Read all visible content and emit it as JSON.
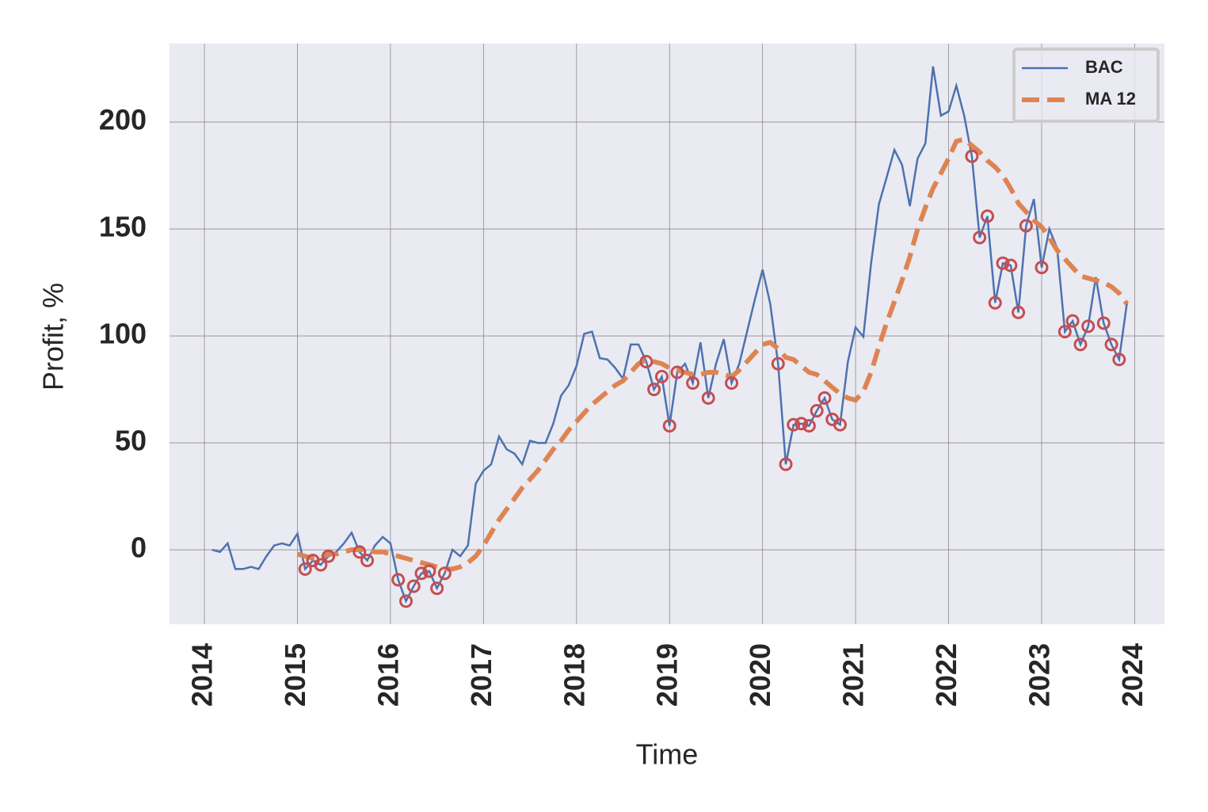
{
  "chart_data": {
    "type": "line",
    "xlabel": "Time",
    "ylabel": "Profit, %",
    "xlim": [
      2013.625,
      2024.32
    ],
    "xticks": [
      2014,
      2015,
      2016,
      2017,
      2018,
      2019,
      2020,
      2021,
      2022,
      2023,
      2024
    ],
    "ylim": [
      -34.8,
      236.7
    ],
    "yticks": [
      0,
      50,
      100,
      150,
      200
    ],
    "grid": true,
    "legend": "upper right",
    "marker_color": "#c44e52",
    "x": [
      2014.083,
      2014.167,
      2014.25,
      2014.333,
      2014.417,
      2014.5,
      2014.583,
      2014.667,
      2014.75,
      2014.833,
      2014.917,
      2015.0,
      2015.083,
      2015.167,
      2015.25,
      2015.333,
      2015.417,
      2015.5,
      2015.583,
      2015.667,
      2015.75,
      2015.833,
      2015.917,
      2016.0,
      2016.083,
      2016.167,
      2016.25,
      2016.333,
      2016.417,
      2016.5,
      2016.583,
      2016.667,
      2016.75,
      2016.833,
      2016.917,
      2017.0,
      2017.083,
      2017.167,
      2017.25,
      2017.333,
      2017.417,
      2017.5,
      2017.583,
      2017.667,
      2017.75,
      2017.833,
      2017.917,
      2018.0,
      2018.083,
      2018.167,
      2018.25,
      2018.333,
      2018.417,
      2018.5,
      2018.583,
      2018.667,
      2018.75,
      2018.833,
      2018.917,
      2019.0,
      2019.083,
      2019.167,
      2019.25,
      2019.333,
      2019.417,
      2019.5,
      2019.583,
      2019.667,
      2019.75,
      2019.833,
      2019.917,
      2020.0,
      2020.083,
      2020.167,
      2020.25,
      2020.333,
      2020.417,
      2020.5,
      2020.583,
      2020.667,
      2020.75,
      2020.833,
      2020.917,
      2021.0,
      2021.083,
      2021.167,
      2021.25,
      2021.333,
      2021.417,
      2021.5,
      2021.583,
      2021.667,
      2021.75,
      2021.833,
      2021.917,
      2022.0,
      2022.083,
      2022.167,
      2022.25,
      2022.333,
      2022.417,
      2022.5,
      2022.583,
      2022.667,
      2022.75,
      2022.833,
      2022.917,
      2023.0,
      2023.083,
      2023.167,
      2023.25,
      2023.333,
      2023.417,
      2023.5,
      2023.583,
      2023.667,
      2023.75,
      2023.833,
      2023.917
    ],
    "series": [
      {
        "name": "BAC",
        "color": "#4c72b0",
        "style": "solid",
        "values": [
          0,
          -1,
          3,
          -9,
          -9,
          -8,
          -9,
          -3,
          2,
          3,
          2,
          7.5,
          -9,
          -5,
          -7,
          -3,
          -1,
          3,
          8,
          -1,
          -5,
          2,
          6,
          3,
          -14,
          -24,
          -17,
          -11,
          -10,
          -18,
          -11,
          0,
          -3,
          2,
          31,
          37,
          40,
          53,
          47,
          45,
          40,
          51,
          50,
          50,
          59,
          72,
          77,
          86,
          101,
          102,
          89.6,
          89,
          85,
          80,
          96,
          96,
          88,
          75,
          81,
          58,
          83,
          87,
          78,
          97,
          71,
          87,
          98.5,
          78,
          87,
          102,
          117,
          131,
          115,
          87,
          40,
          58.5,
          59,
          58,
          65,
          71,
          61,
          58.5,
          88,
          104,
          99.6,
          134,
          161.5,
          174,
          187,
          180,
          160.7,
          183,
          190,
          226,
          203,
          205,
          217,
          203,
          184,
          146,
          156,
          115.5,
          134,
          133,
          111,
          151.5,
          164,
          132,
          150,
          141,
          102,
          107,
          96,
          104.5,
          127.5,
          106,
          96,
          89,
          115.5
        ]
      },
      {
        "name": "MA 12",
        "color": "#dd8452",
        "style": "dashed",
        "values": [
          null,
          null,
          null,
          null,
          null,
          null,
          null,
          null,
          null,
          null,
          null,
          -2,
          -3,
          -4,
          -4,
          -2,
          -2,
          -1,
          0,
          0,
          0,
          -1,
          -1,
          -2,
          -3,
          -4,
          -5,
          -6,
          -7,
          -8,
          -9,
          -9,
          -8,
          -6,
          -3,
          2,
          8,
          14,
          19,
          24,
          29,
          33,
          37,
          42,
          47,
          51,
          56,
          60,
          64,
          68,
          71,
          74,
          77,
          79,
          83,
          87,
          89,
          88,
          87,
          85,
          84,
          83,
          82,
          82,
          83,
          83,
          82,
          81,
          84,
          88,
          92,
          96,
          97,
          94,
          90,
          89,
          86,
          83,
          82,
          79,
          76,
          73,
          71,
          70,
          74,
          83,
          95,
          106,
          116,
          126,
          137,
          150,
          160,
          169,
          176,
          183,
          191,
          192,
          189,
          186,
          182,
          179,
          175,
          169,
          162,
          158,
          154,
          151,
          146,
          140,
          136,
          132,
          128,
          127,
          126,
          125,
          123,
          120,
          115
        ]
      }
    ]
  }
}
